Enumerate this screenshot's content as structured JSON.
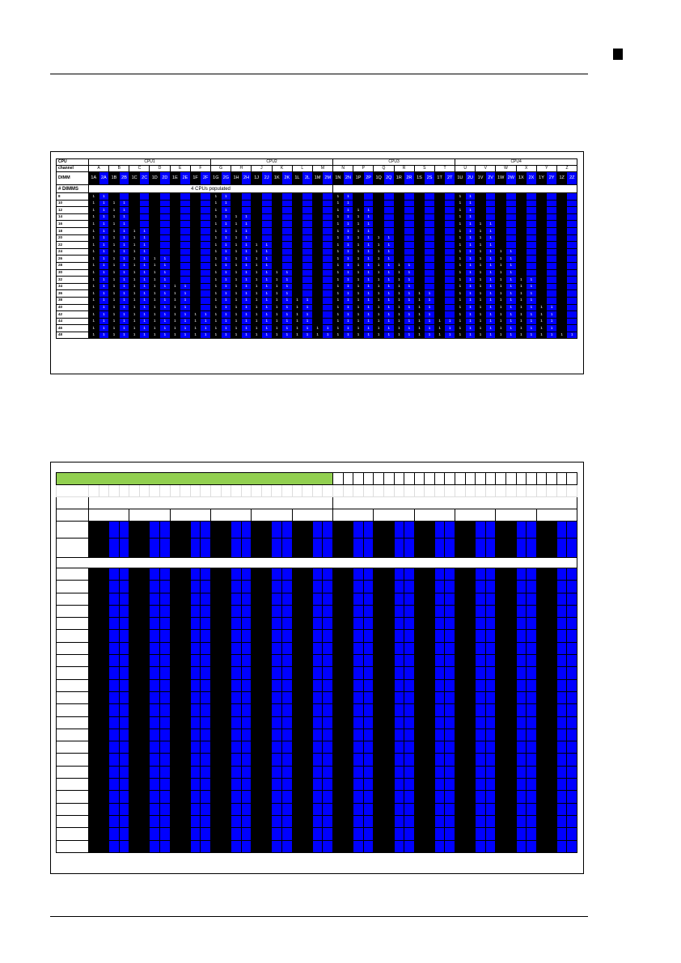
{
  "top_table": {
    "cpu_label": "CPU",
    "channel_label": "channel",
    "dimm_label": "DIMM",
    "ndimms_label": "# DIMMS",
    "populated_label": "4 CPUs populated",
    "cpus": [
      "CPU1",
      "CPU2",
      "CPU3",
      "CPU4"
    ],
    "channels": [
      "A",
      "B",
      "C",
      "D",
      "E",
      "F",
      "G",
      "H",
      "J",
      "K",
      "L",
      "M",
      "N",
      "P",
      "Q",
      "R",
      "S",
      "T",
      "U",
      "V",
      "W",
      "X",
      "Y",
      "Z"
    ],
    "slots": [
      "1A",
      "2A",
      "1B",
      "2B",
      "1C",
      "2C",
      "1D",
      "2D",
      "1E",
      "2E",
      "1F",
      "2F",
      "1G",
      "2G",
      "1H",
      "2H",
      "1J",
      "2J",
      "1K",
      "2K",
      "1L",
      "2L",
      "1M",
      "2M",
      "1N",
      "2N",
      "1P",
      "2P",
      "1Q",
      "2Q",
      "1R",
      "2R",
      "1S",
      "2S",
      "1T",
      "2T",
      "1U",
      "2U",
      "1V",
      "2V",
      "1W",
      "2W",
      "1X",
      "2X",
      "1Y",
      "2Y",
      "1Z",
      "2Z"
    ],
    "rows": [
      {
        "n": "8",
        "f": [
          1,
          1,
          0,
          0,
          0,
          0,
          0,
          0,
          0,
          0,
          0,
          0,
          1,
          1,
          0,
          0,
          0,
          0,
          0,
          0,
          0,
          0,
          0,
          0,
          1,
          1,
          0,
          0,
          0,
          0,
          0,
          0,
          0,
          0,
          0,
          0,
          1,
          1,
          0,
          0,
          0,
          0,
          0,
          0,
          0,
          0,
          0,
          0
        ]
      },
      {
        "n": "10",
        "f": [
          1,
          1,
          1,
          1,
          0,
          0,
          0,
          0,
          0,
          0,
          0,
          0,
          1,
          1,
          0,
          0,
          0,
          0,
          0,
          0,
          0,
          0,
          0,
          0,
          1,
          1,
          0,
          0,
          0,
          0,
          0,
          0,
          0,
          0,
          0,
          0,
          1,
          1,
          0,
          0,
          0,
          0,
          0,
          0,
          0,
          0,
          0,
          0
        ]
      },
      {
        "n": "12",
        "f": [
          1,
          1,
          1,
          1,
          0,
          0,
          0,
          0,
          0,
          0,
          0,
          0,
          1,
          1,
          0,
          0,
          0,
          0,
          0,
          0,
          0,
          0,
          0,
          0,
          1,
          1,
          1,
          1,
          0,
          0,
          0,
          0,
          0,
          0,
          0,
          0,
          1,
          1,
          0,
          0,
          0,
          0,
          0,
          0,
          0,
          0,
          0,
          0
        ]
      },
      {
        "n": "14",
        "f": [
          1,
          1,
          1,
          1,
          0,
          0,
          0,
          0,
          0,
          0,
          0,
          0,
          1,
          1,
          1,
          1,
          0,
          0,
          0,
          0,
          0,
          0,
          0,
          0,
          1,
          1,
          1,
          1,
          0,
          0,
          0,
          0,
          0,
          0,
          0,
          0,
          1,
          1,
          0,
          0,
          0,
          0,
          0,
          0,
          0,
          0,
          0,
          0
        ]
      },
      {
        "n": "16",
        "f": [
          1,
          1,
          1,
          1,
          0,
          0,
          0,
          0,
          0,
          0,
          0,
          0,
          1,
          1,
          1,
          1,
          0,
          0,
          0,
          0,
          0,
          0,
          0,
          0,
          1,
          1,
          1,
          1,
          0,
          0,
          0,
          0,
          0,
          0,
          0,
          0,
          1,
          1,
          1,
          1,
          0,
          0,
          0,
          0,
          0,
          0,
          0,
          0
        ]
      },
      {
        "n": "18",
        "f": [
          1,
          1,
          1,
          1,
          1,
          1,
          0,
          0,
          0,
          0,
          0,
          0,
          1,
          1,
          1,
          1,
          0,
          0,
          0,
          0,
          0,
          0,
          0,
          0,
          1,
          1,
          1,
          1,
          0,
          0,
          0,
          0,
          0,
          0,
          0,
          0,
          1,
          1,
          1,
          1,
          0,
          0,
          0,
          0,
          0,
          0,
          0,
          0
        ]
      },
      {
        "n": "20",
        "f": [
          1,
          1,
          1,
          1,
          1,
          1,
          0,
          0,
          0,
          0,
          0,
          0,
          1,
          1,
          1,
          1,
          0,
          0,
          0,
          0,
          0,
          0,
          0,
          0,
          1,
          1,
          1,
          1,
          1,
          1,
          0,
          0,
          0,
          0,
          0,
          0,
          1,
          1,
          1,
          1,
          0,
          0,
          0,
          0,
          0,
          0,
          0,
          0
        ]
      },
      {
        "n": "22",
        "f": [
          1,
          1,
          1,
          1,
          1,
          1,
          0,
          0,
          0,
          0,
          0,
          0,
          1,
          1,
          1,
          1,
          1,
          1,
          0,
          0,
          0,
          0,
          0,
          0,
          1,
          1,
          1,
          1,
          1,
          1,
          0,
          0,
          0,
          0,
          0,
          0,
          1,
          1,
          1,
          1,
          0,
          0,
          0,
          0,
          0,
          0,
          0,
          0
        ]
      },
      {
        "n": "24",
        "f": [
          1,
          1,
          1,
          1,
          1,
          1,
          0,
          0,
          0,
          0,
          0,
          0,
          1,
          1,
          1,
          1,
          1,
          1,
          0,
          0,
          0,
          0,
          0,
          0,
          1,
          1,
          1,
          1,
          1,
          1,
          0,
          0,
          0,
          0,
          0,
          0,
          1,
          1,
          1,
          1,
          1,
          1,
          0,
          0,
          0,
          0,
          0,
          0
        ]
      },
      {
        "n": "26",
        "f": [
          1,
          1,
          1,
          1,
          1,
          1,
          1,
          1,
          0,
          0,
          0,
          0,
          1,
          1,
          1,
          1,
          1,
          1,
          0,
          0,
          0,
          0,
          0,
          0,
          1,
          1,
          1,
          1,
          1,
          1,
          0,
          0,
          0,
          0,
          0,
          0,
          1,
          1,
          1,
          1,
          1,
          1,
          0,
          0,
          0,
          0,
          0,
          0
        ]
      },
      {
        "n": "28",
        "f": [
          1,
          1,
          1,
          1,
          1,
          1,
          1,
          1,
          0,
          0,
          0,
          0,
          1,
          1,
          1,
          1,
          1,
          1,
          0,
          0,
          0,
          0,
          0,
          0,
          1,
          1,
          1,
          1,
          1,
          1,
          1,
          1,
          0,
          0,
          0,
          0,
          1,
          1,
          1,
          1,
          1,
          1,
          0,
          0,
          0,
          0,
          0,
          0
        ]
      },
      {
        "n": "30",
        "f": [
          1,
          1,
          1,
          1,
          1,
          1,
          1,
          1,
          0,
          0,
          0,
          0,
          1,
          1,
          1,
          1,
          1,
          1,
          1,
          1,
          0,
          0,
          0,
          0,
          1,
          1,
          1,
          1,
          1,
          1,
          1,
          1,
          0,
          0,
          0,
          0,
          1,
          1,
          1,
          1,
          1,
          1,
          0,
          0,
          0,
          0,
          0,
          0
        ]
      },
      {
        "n": "32",
        "f": [
          1,
          1,
          1,
          1,
          1,
          1,
          1,
          1,
          0,
          0,
          0,
          0,
          1,
          1,
          1,
          1,
          1,
          1,
          1,
          1,
          0,
          0,
          0,
          0,
          1,
          1,
          1,
          1,
          1,
          1,
          1,
          1,
          0,
          0,
          0,
          0,
          1,
          1,
          1,
          1,
          1,
          1,
          1,
          1,
          0,
          0,
          0,
          0
        ]
      },
      {
        "n": "34",
        "f": [
          1,
          1,
          1,
          1,
          1,
          1,
          1,
          1,
          1,
          1,
          0,
          0,
          1,
          1,
          1,
          1,
          1,
          1,
          1,
          1,
          0,
          0,
          0,
          0,
          1,
          1,
          1,
          1,
          1,
          1,
          1,
          1,
          0,
          0,
          0,
          0,
          1,
          1,
          1,
          1,
          1,
          1,
          1,
          1,
          0,
          0,
          0,
          0
        ]
      },
      {
        "n": "36",
        "f": [
          1,
          1,
          1,
          1,
          1,
          1,
          1,
          1,
          1,
          1,
          0,
          0,
          1,
          1,
          1,
          1,
          1,
          1,
          1,
          1,
          0,
          0,
          0,
          0,
          1,
          1,
          1,
          1,
          1,
          1,
          1,
          1,
          1,
          1,
          0,
          0,
          1,
          1,
          1,
          1,
          1,
          1,
          1,
          1,
          0,
          0,
          0,
          0
        ]
      },
      {
        "n": "38",
        "f": [
          1,
          1,
          1,
          1,
          1,
          1,
          1,
          1,
          1,
          1,
          0,
          0,
          1,
          1,
          1,
          1,
          1,
          1,
          1,
          1,
          1,
          1,
          0,
          0,
          1,
          1,
          1,
          1,
          1,
          1,
          1,
          1,
          1,
          1,
          0,
          0,
          1,
          1,
          1,
          1,
          1,
          1,
          1,
          1,
          0,
          0,
          0,
          0
        ]
      },
      {
        "n": "40",
        "f": [
          1,
          1,
          1,
          1,
          1,
          1,
          1,
          1,
          1,
          1,
          0,
          0,
          1,
          1,
          1,
          1,
          1,
          1,
          1,
          1,
          1,
          1,
          0,
          0,
          1,
          1,
          1,
          1,
          1,
          1,
          1,
          1,
          1,
          1,
          0,
          0,
          1,
          1,
          1,
          1,
          1,
          1,
          1,
          1,
          1,
          1,
          0,
          0
        ]
      },
      {
        "n": "42",
        "f": [
          1,
          1,
          1,
          1,
          1,
          1,
          1,
          1,
          1,
          1,
          1,
          1,
          1,
          1,
          1,
          1,
          1,
          1,
          1,
          1,
          1,
          1,
          0,
          0,
          1,
          1,
          1,
          1,
          1,
          1,
          1,
          1,
          1,
          1,
          0,
          0,
          1,
          1,
          1,
          1,
          1,
          1,
          1,
          1,
          1,
          1,
          0,
          0
        ]
      },
      {
        "n": "44",
        "f": [
          1,
          1,
          1,
          1,
          1,
          1,
          1,
          1,
          1,
          1,
          1,
          1,
          1,
          1,
          1,
          1,
          1,
          1,
          1,
          1,
          1,
          1,
          0,
          0,
          1,
          1,
          1,
          1,
          1,
          1,
          1,
          1,
          1,
          1,
          1,
          1,
          1,
          1,
          1,
          1,
          1,
          1,
          1,
          1,
          1,
          1,
          0,
          0
        ]
      },
      {
        "n": "46",
        "f": [
          1,
          1,
          1,
          1,
          1,
          1,
          1,
          1,
          1,
          1,
          1,
          1,
          1,
          1,
          1,
          1,
          1,
          1,
          1,
          1,
          1,
          1,
          1,
          1,
          1,
          1,
          1,
          1,
          1,
          1,
          1,
          1,
          1,
          1,
          1,
          1,
          1,
          1,
          1,
          1,
          1,
          1,
          1,
          1,
          1,
          1,
          0,
          0
        ]
      },
      {
        "n": "48",
        "f": [
          1,
          1,
          1,
          1,
          1,
          1,
          1,
          1,
          1,
          1,
          1,
          1,
          1,
          1,
          1,
          1,
          1,
          1,
          1,
          1,
          1,
          1,
          1,
          1,
          1,
          1,
          1,
          1,
          1,
          1,
          1,
          1,
          1,
          1,
          1,
          1,
          1,
          1,
          1,
          1,
          1,
          1,
          1,
          1,
          1,
          1,
          1,
          1
        ]
      }
    ]
  },
  "colors": {
    "slot1": "#000000",
    "slot2": "#0000ff",
    "header": "#92d050"
  },
  "bottom_table": {
    "data_row_count": 23
  }
}
